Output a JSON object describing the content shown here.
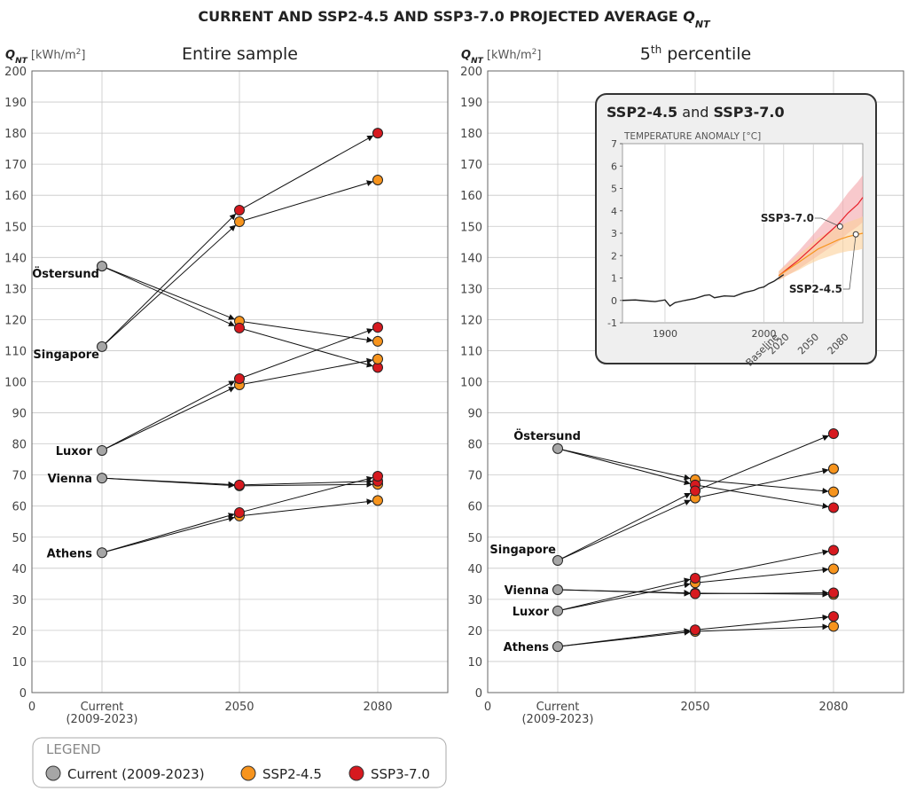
{
  "title_parts": [
    "CURRENT AND SSP2-4.5 AND SSP3-7.0 PROJECTED AVERAGE ",
    "Q",
    "NT"
  ],
  "legend": {
    "title": "LEGEND",
    "entries": [
      {
        "name": "Current (2009-2023)",
        "color": "#a6a6a6"
      },
      {
        "name": "SSP2-4.5",
        "color": "#f7941d"
      },
      {
        "name": "SSP3-7.0",
        "color": "#d7191f"
      }
    ]
  },
  "chart_data": [
    {
      "type": "slope",
      "subtitle_parts": [
        "Entire sample"
      ],
      "ylabel_parts": [
        "Q",
        "NT",
        " [kWh/m",
        "2",
        "]"
      ],
      "categories": [
        "Current\n(2009-2023)",
        "2050",
        "2080"
      ],
      "x_origin_label": "0",
      "ylim": [
        0,
        200
      ],
      "yticks": [
        0,
        10,
        20,
        30,
        40,
        50,
        60,
        70,
        80,
        90,
        100,
        110,
        120,
        130,
        140,
        150,
        160,
        170,
        180,
        190,
        200
      ],
      "grid": true,
      "series": [
        {
          "name": "Östersund",
          "current": 137.2,
          "ssp245": [
            119.5,
            113
          ],
          "ssp370": [
            117.3,
            104.6
          ]
        },
        {
          "name": "Singapore",
          "current": 111.3,
          "ssp245": [
            151.5,
            164.9
          ],
          "ssp370": [
            155.2,
            180
          ]
        },
        {
          "name": "Luxor",
          "current": 77.9,
          "ssp245": [
            99,
            107.3
          ],
          "ssp370": [
            101,
            117.5
          ]
        },
        {
          "name": "Vienna",
          "current": 69,
          "ssp245": [
            66.5,
            67
          ],
          "ssp370": [
            66.8,
            68
          ]
        },
        {
          "name": "Athens",
          "current": 45,
          "ssp245": [
            56.8,
            61.8
          ],
          "ssp370": [
            57.9,
            69.6
          ]
        }
      ]
    },
    {
      "type": "slope",
      "subtitle_parts": [
        "5",
        "th",
        " percentile"
      ],
      "ylabel_parts": [
        "Q",
        "NT",
        " [kWh/m",
        "2",
        "]"
      ],
      "categories": [
        "Current\n(2009-2023)",
        "2050",
        "2080"
      ],
      "x_origin_label": "0",
      "ylim": [
        0,
        200
      ],
      "yticks": [
        0,
        10,
        20,
        30,
        40,
        50,
        60,
        70,
        80,
        90,
        100,
        110,
        120,
        130,
        140,
        150,
        160,
        170,
        180,
        190,
        200
      ],
      "grid": true,
      "series": [
        {
          "name": "Östersund",
          "current": 78.5,
          "ssp245": [
            68.5,
            64.6
          ],
          "ssp370": [
            66.8,
            59.5
          ]
        },
        {
          "name": "Singapore",
          "current": 42.5,
          "ssp245": [
            62.6,
            72
          ],
          "ssp370": [
            64.9,
            83.3
          ]
        },
        {
          "name": "Luxor",
          "current": 26.3,
          "ssp245": [
            35.3,
            39.8
          ],
          "ssp370": [
            36.8,
            45.8
          ]
        },
        {
          "name": "Vienna",
          "current": 33.1,
          "ssp245": [
            32,
            31.6
          ],
          "ssp370": [
            31.8,
            32.1
          ]
        },
        {
          "name": "Athens",
          "current": 14.8,
          "ssp245": [
            19.7,
            21.3
          ],
          "ssp370": [
            20.2,
            24.5
          ]
        }
      ]
    },
    {
      "type": "line",
      "title_parts": [
        "SSP2-4.5",
        " and ",
        "SSP3-7.0"
      ],
      "ylabel": "TEMPERATURE ANOMALY [°C]",
      "baseline_label": "Baseline",
      "xlim": [
        1857,
        2100
      ],
      "ylim": [
        -1,
        7
      ],
      "yticks": [
        -1,
        0,
        1,
        2,
        3,
        4,
        5,
        6,
        7
      ],
      "xticks": [
        1900,
        2000,
        2020,
        2050,
        2080
      ],
      "series": [
        {
          "color": "#222222",
          "x": [
            1857,
            1870,
            1880,
            1890,
            1900,
            1905,
            1910,
            1920,
            1930,
            1940,
            1945,
            1950,
            1960,
            1970,
            1980,
            1990,
            1995,
            2000,
            2005,
            2010,
            2015,
            2020
          ],
          "values": [
            0,
            0.02,
            -0.02,
            -0.05,
            0.02,
            -0.25,
            -0.1,
            0,
            0.08,
            0.22,
            0.25,
            0.12,
            0.2,
            0.18,
            0.35,
            0.45,
            0.55,
            0.6,
            0.75,
            0.85,
            1,
            1.15
          ]
        },
        {
          "name": "SSP3-7.0",
          "color": "#e8202a",
          "band_color": "#f4a5aa",
          "x": [
            2015,
            2025,
            2035,
            2045,
            2055,
            2065,
            2075,
            2085,
            2095,
            2100
          ],
          "values": [
            1.1,
            1.45,
            1.8,
            2.2,
            2.6,
            3,
            3.4,
            3.9,
            4.3,
            4.6
          ],
          "lower": [
            0.9,
            1.15,
            1.4,
            1.7,
            2,
            2.3,
            2.6,
            3,
            3.3,
            3.5
          ],
          "upper": [
            1.3,
            1.75,
            2.2,
            2.7,
            3.2,
            3.7,
            4.2,
            4.8,
            5.3,
            5.6
          ],
          "marker": {
            "x": 2077,
            "value": 3.3
          }
        },
        {
          "name": "SSP2-4.5",
          "color": "#f7941d",
          "band_color": "#fbd19a",
          "x": [
            2015,
            2025,
            2035,
            2045,
            2055,
            2065,
            2075,
            2085,
            2095,
            2100
          ],
          "values": [
            1.1,
            1.4,
            1.7,
            2,
            2.3,
            2.5,
            2.7,
            2.85,
            2.95,
            3
          ],
          "lower": [
            0.9,
            1.15,
            1.35,
            1.6,
            1.8,
            1.95,
            2.1,
            2.2,
            2.25,
            2.3
          ],
          "upper": [
            1.3,
            1.65,
            2.05,
            2.4,
            2.8,
            3.05,
            3.3,
            3.5,
            3.65,
            3.75
          ],
          "marker": {
            "x": 2093,
            "value": 2.95
          }
        }
      ]
    }
  ]
}
